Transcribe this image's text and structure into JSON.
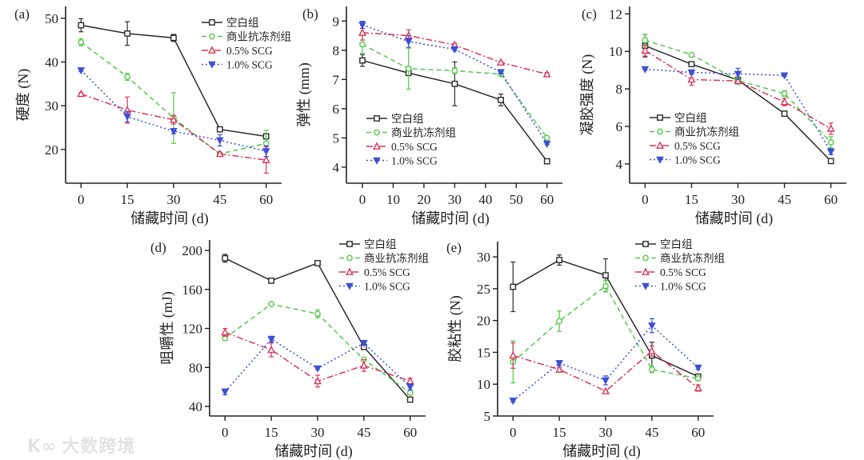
{
  "watermark": {
    "logo_text": "K∞",
    "text": "大数跨境"
  },
  "series_style": [
    {
      "color": "#2b2b2b",
      "dash": "solid",
      "marker": "square"
    },
    {
      "color": "#55c84a",
      "dash": "dashed",
      "marker": "circle"
    },
    {
      "color": "#d8365a",
      "dash": "dashdot",
      "marker": "triangle-up"
    },
    {
      "color": "#3b4fd8",
      "dash": "dotted",
      "marker": "triangle-down"
    }
  ],
  "chart_data": [
    {
      "panel": "(a)",
      "type": "line",
      "xlabel": "储藏时间 (d)",
      "ylabel": "硬度 (N)",
      "x": [
        0,
        15,
        30,
        45,
        60
      ],
      "xticks": [
        0,
        15,
        30,
        45,
        60
      ],
      "xlim": [
        -5,
        65
      ],
      "yticks": [
        20,
        30,
        40,
        50
      ],
      "ylim": [
        12.3,
        52.7
      ],
      "legend": "top-right",
      "series": [
        {
          "name": "空白组",
          "values": [
            48.4,
            46.5,
            45.5,
            24.6,
            23.0
          ],
          "err": [
            1.5,
            2.7,
            0.8,
            0.3,
            0.4
          ]
        },
        {
          "name": "商业抗冻剂组",
          "values": [
            44.5,
            36.6,
            27.2,
            19.0,
            21.4
          ],
          "err": [
            0.8,
            0.8,
            5.8,
            0.3,
            3.0
          ]
        },
        {
          "name": "0.5% SCG",
          "values": [
            32.7,
            29.0,
            26.8,
            19.0,
            17.6
          ],
          "err": [
            0.3,
            3.0,
            1.0,
            0.3,
            3.0
          ]
        },
        {
          "name": "1.0% SCG",
          "values": [
            38.1,
            27.5,
            24.2,
            22.1,
            19.6
          ],
          "err": [
            0.3,
            1.2,
            0.6,
            1.3,
            1.2
          ]
        }
      ]
    },
    {
      "panel": "(b)",
      "type": "line",
      "xlabel": "储藏时间 (d)",
      "ylabel": "弹性 (mm)",
      "x": [
        0,
        15,
        30,
        45,
        60
      ],
      "xticks": [
        0,
        10,
        20,
        30,
        40,
        50,
        60
      ],
      "xlim": [
        -5.2,
        65
      ],
      "yticks": [
        4,
        5,
        6,
        7,
        8,
        9
      ],
      "ylim": [
        3.45,
        9.5
      ],
      "legend": "bottom-left",
      "series": [
        {
          "name": "空白组",
          "values": [
            7.65,
            7.22,
            6.85,
            6.3,
            4.2
          ],
          "err": [
            0.2,
            0.05,
            0.75,
            0.2,
            0.03
          ]
        },
        {
          "name": "商业抗冻剂组",
          "values": [
            8.2,
            7.37,
            7.3,
            7.18,
            5.0
          ],
          "err": [
            0.3,
            0.7,
            0.1,
            0.05,
            0.05
          ]
        },
        {
          "name": "0.5% SCG",
          "values": [
            8.6,
            8.5,
            8.18,
            7.58,
            7.18
          ],
          "err": [
            0.25,
            0.2,
            0.05,
            0.03,
            0.05
          ]
        },
        {
          "name": "1.0% SCG",
          "values": [
            8.87,
            8.3,
            8.03,
            7.25,
            4.8
          ],
          "err": [
            0.12,
            0.2,
            0.05,
            0.05,
            0.03
          ]
        }
      ]
    },
    {
      "panel": "(c)",
      "type": "line",
      "xlabel": "储藏时间 (d)",
      "ylabel": "凝胶强度 (N)",
      "x": [
        0,
        15,
        30,
        45,
        60
      ],
      "xticks": [
        0,
        15,
        30,
        45,
        60
      ],
      "xlim": [
        -5,
        65
      ],
      "yticks": [
        4,
        6,
        8,
        10,
        12
      ],
      "ylim": [
        2.97,
        12.4
      ],
      "legend": "bottom-left",
      "series": [
        {
          "name": "空白组",
          "values": [
            10.3,
            9.32,
            8.47,
            6.68,
            4.15
          ],
          "err": [
            0.6,
            0.05,
            0.1,
            0.1,
            0.1
          ]
        },
        {
          "name": "商业抗冻剂组",
          "values": [
            10.6,
            9.82,
            8.45,
            7.75,
            5.15
          ],
          "err": [
            0.3,
            0.05,
            0.2,
            0.15,
            0.3
          ]
        },
        {
          "name": "0.5% SCG",
          "values": [
            10.05,
            8.5,
            8.42,
            7.3,
            5.88
          ],
          "err": [
            0.3,
            0.3,
            0.05,
            0.2,
            0.3
          ]
        },
        {
          "name": "1.0% SCG",
          "values": [
            9.05,
            8.88,
            8.8,
            8.72,
            4.65
          ],
          "err": [
            0.05,
            0.1,
            0.3,
            0.05,
            0.15
          ]
        }
      ]
    },
    {
      "panel": "(d)",
      "type": "line",
      "xlabel": "储藏时间 (d)",
      "ylabel": "咀嚼性 (mJ)",
      "x": [
        0,
        15,
        30,
        45,
        60
      ],
      "xticks": [
        0,
        15,
        30,
        45,
        60
      ],
      "xlim": [
        -5,
        65
      ],
      "yticks": [
        40,
        80,
        120,
        160,
        200
      ],
      "ylim": [
        30.2,
        210.7
      ],
      "legend": "top-right",
      "series": [
        {
          "name": "空白组",
          "values": [
            192,
            169,
            187,
            101,
            47
          ],
          "err": [
            4,
            1,
            1,
            2,
            1
          ]
        },
        {
          "name": "商业抗冻剂组",
          "values": [
            110,
            145,
            135,
            88,
            54
          ],
          "err": [
            2,
            1,
            4,
            1,
            1
          ]
        },
        {
          "name": "0.5% SCG",
          "values": [
            116,
            98,
            66,
            82,
            66
          ],
          "err": [
            4,
            7,
            6,
            6,
            3
          ]
        },
        {
          "name": "1.0% SCG",
          "values": [
            55,
            109,
            79,
            105,
            60
          ],
          "err": [
            3,
            3,
            1,
            2,
            3
          ]
        }
      ]
    },
    {
      "panel": "(e)",
      "type": "line",
      "xlabel": "储藏时间 (d)",
      "ylabel": "胶粘性 (N)",
      "x": [
        0,
        15,
        30,
        45,
        60
      ],
      "xticks": [
        0,
        15,
        30,
        45,
        60
      ],
      "xlim": [
        -5,
        65
      ],
      "yticks": [
        5,
        10,
        15,
        20,
        25,
        30
      ],
      "ylim": [
        5,
        32.4
      ],
      "legend": "top-right",
      "series": [
        {
          "name": "空白组",
          "values": [
            25.3,
            29.5,
            27.1,
            14.5,
            11.2
          ],
          "err": [
            3.9,
            0.8,
            2.6,
            2.1,
            0.2
          ]
        },
        {
          "name": "商业抗冻剂组",
          "values": [
            13.5,
            19.9,
            25.4,
            12.3,
            10.9
          ],
          "err": [
            3.3,
            1.6,
            0.9,
            0.5,
            0.3
          ]
        },
        {
          "name": "0.5% SCG",
          "values": [
            14.5,
            12.3,
            8.9,
            15.2,
            9.4
          ],
          "err": [
            2.0,
            0.3,
            0.2,
            0.8,
            0.5
          ]
        },
        {
          "name": "1.0% SCG",
          "values": [
            7.4,
            13.3,
            10.6,
            19.2,
            12.6
          ],
          "err": [
            0.2,
            0.4,
            0.7,
            1.1,
            0.3
          ]
        }
      ]
    }
  ]
}
